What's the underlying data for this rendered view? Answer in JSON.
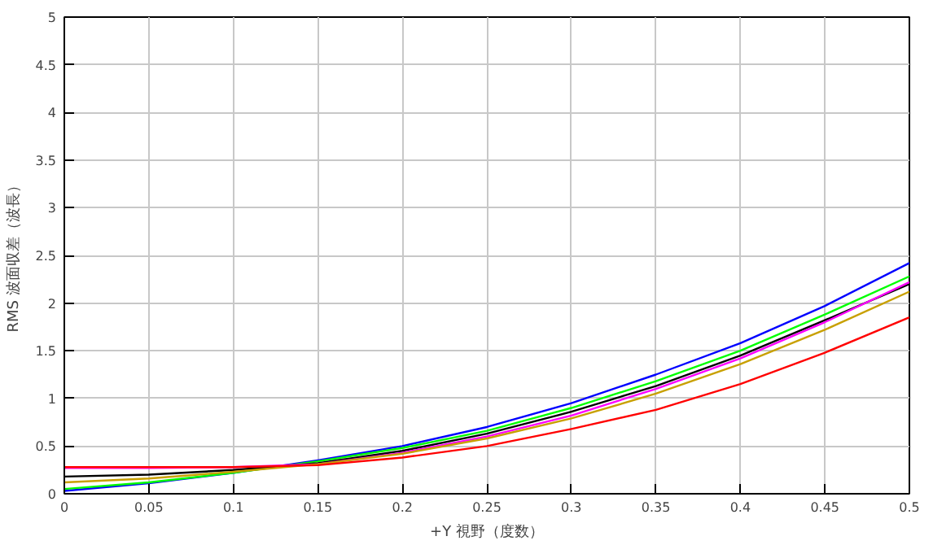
{
  "chart_data": {
    "type": "line",
    "xlabel": "+Y 視野（度数）",
    "ylabel": "RMS 波面収差（波長）",
    "x": [
      0,
      0.05,
      0.1,
      0.15,
      0.2,
      0.25,
      0.3,
      0.35,
      0.4,
      0.45,
      0.5
    ],
    "series": [
      {
        "color": "#0000ff",
        "values": [
          0.03,
          0.11,
          0.22,
          0.35,
          0.5,
          0.7,
          0.95,
          1.25,
          1.58,
          1.97,
          2.42
        ]
      },
      {
        "color": "#00ff00",
        "values": [
          0.05,
          0.12,
          0.22,
          0.34,
          0.48,
          0.66,
          0.9,
          1.18,
          1.5,
          1.88,
          2.28
        ]
      },
      {
        "color": "#000000",
        "values": [
          0.18,
          0.2,
          0.25,
          0.32,
          0.45,
          0.63,
          0.86,
          1.13,
          1.45,
          1.82,
          2.2
        ]
      },
      {
        "color": "#ff00ff",
        "values": [
          0.27,
          0.27,
          0.28,
          0.31,
          0.43,
          0.6,
          0.82,
          1.1,
          1.42,
          1.8,
          2.22
        ]
      },
      {
        "color": "#c8a000",
        "values": [
          0.12,
          0.16,
          0.23,
          0.31,
          0.42,
          0.58,
          0.79,
          1.05,
          1.36,
          1.72,
          2.12
        ]
      },
      {
        "color": "#ff0000",
        "values": [
          0.28,
          0.28,
          0.28,
          0.3,
          0.38,
          0.5,
          0.68,
          0.88,
          1.15,
          1.48,
          1.85
        ]
      }
    ],
    "xlim": [
      0,
      0.5
    ],
    "ylim": [
      0,
      5
    ],
    "xticks": [
      0,
      0.05,
      0.1,
      0.15,
      0.2,
      0.25,
      0.3,
      0.35,
      0.4,
      0.45,
      0.5
    ],
    "yticks": [
      0,
      0.5,
      1,
      1.5,
      2,
      2.5,
      3,
      3.5,
      4,
      4.5,
      5
    ],
    "grid": true,
    "marker": "none",
    "line_style": "solid"
  }
}
